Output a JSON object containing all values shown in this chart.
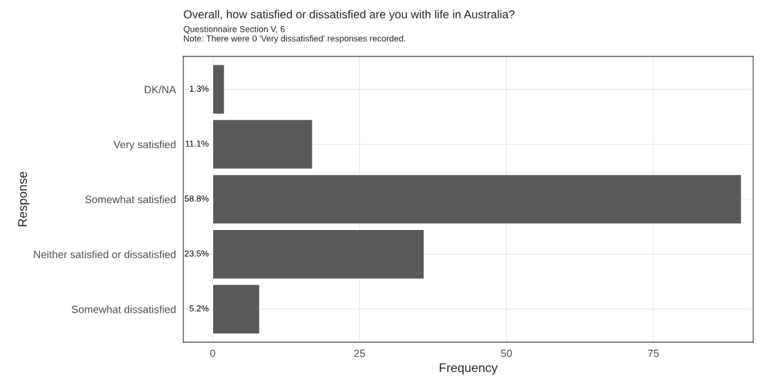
{
  "chart_data": {
    "type": "bar",
    "orientation": "horizontal",
    "title": "Overall, how satisfied or dissatisfied are you with life in Australia?",
    "subtitle": "Questionnaire Section V, 6",
    "annotations": [
      "Note: There were 0 'Very dissatisfied' responses recorded.",
      "1.3%",
      "11.1%",
      "58.8%",
      "23.5%",
      "5.2%"
    ],
    "categories": [
      "DK/NA",
      "Very satisfied",
      "Somewhat satisfied",
      "Neither satisfied or dissatisfied",
      "Somewhat dissatisfied"
    ],
    "values": [
      2,
      17,
      90,
      36,
      8
    ],
    "color": "#595959",
    "xlabel": "Frequency",
    "ylabel": "Response",
    "xlim": [
      -5,
      92
    ],
    "xticks": [
      0,
      25,
      50,
      75
    ],
    "grid": true
  }
}
